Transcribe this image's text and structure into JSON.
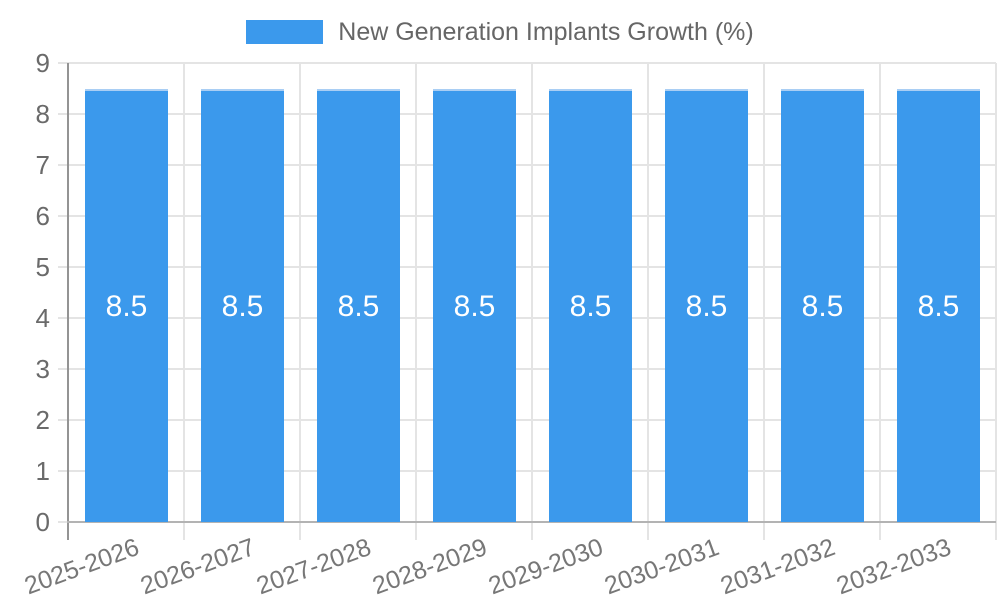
{
  "legend": {
    "label": "New Generation Implants Growth (%)"
  },
  "colors": {
    "bar_fill": "#3b99ec",
    "bar_top_edge": "#a9cef4",
    "bar_label": "#ffffff",
    "grid": "#e4e4e4",
    "y_axis_line": "#949494",
    "x_axis_line": "#b3b3b3",
    "y_tick_label": "#6a6a6a",
    "x_tick_label": "#777777",
    "legend_text": "#666666",
    "background": "#ffffff"
  },
  "chart_data": {
    "type": "bar",
    "title": "New Generation Implants Growth (%)",
    "categories": [
      "2025-2026",
      "2026-2027",
      "2027-2028",
      "2028-2029",
      "2029-2030",
      "2030-2031",
      "2031-2032",
      "2032-2033"
    ],
    "values": [
      8.5,
      8.5,
      8.5,
      8.5,
      8.5,
      8.5,
      8.5,
      8.5
    ],
    "bar_labels": [
      "8.5",
      "8.5",
      "8.5",
      "8.5",
      "8.5",
      "8.5",
      "8.5",
      "8.5"
    ],
    "xlabel": "",
    "ylabel": "",
    "ylim": [
      0,
      9
    ],
    "yticks": [
      0,
      1,
      2,
      3,
      4,
      5,
      6,
      7,
      8,
      9
    ],
    "grid": true,
    "legend_position": "top",
    "x_label_rotation_deg": -20
  }
}
